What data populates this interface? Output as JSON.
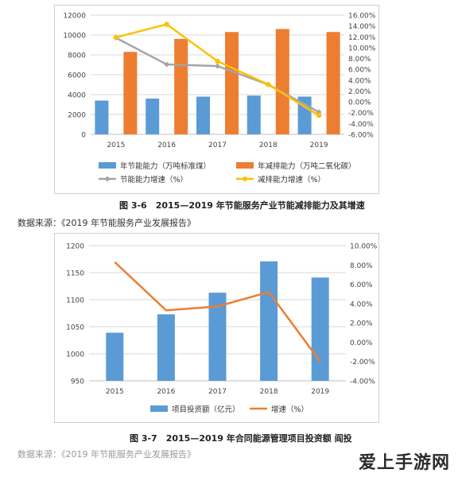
{
  "watermark": "爱上手游网",
  "figures": [
    {
      "caption": "图 3-6　2015—2019 年节能服务产业节能减排能力及其增速",
      "source": "数据来源：《2019 年节能服务产业发展报告》"
    },
    {
      "caption": "图 3-7　2015—2019 年合同能源管理项目投资额 阎投",
      "source": "数据来源：《2019 年节能服务产业发展报告》"
    }
  ],
  "chart_data": [
    {
      "type": "bar",
      "categories": [
        "2015",
        "2016",
        "2017",
        "2018",
        "2019"
      ],
      "ylim": [
        0,
        12000
      ],
      "yticks": [
        "0",
        "2000",
        "4000",
        "6000",
        "8000",
        "10000",
        "12000"
      ],
      "y2lim": [
        -6,
        16
      ],
      "y2ticks": [
        "-6.00%",
        "-4.00%",
        "-2.00%",
        "0.00%",
        "2.00%",
        "4.00%",
        "6.00%",
        "8.00%",
        "10.00%",
        "12.00%",
        "14.00%",
        "16.00%"
      ],
      "legend_position": "bottom",
      "grid": true,
      "series": [
        {
          "name": "年节能能力（万吨标准煤）",
          "kind": "bar",
          "axis": "left",
          "color": "#5b9bd5",
          "values": [
            3400,
            3600,
            3800,
            3900,
            3800
          ]
        },
        {
          "name": "年减排能力（万吨二氧化碳）",
          "kind": "bar",
          "axis": "left",
          "color": "#ed7d31",
          "values": [
            8300,
            9600,
            10300,
            10600,
            10300
          ]
        },
        {
          "name": "节能能力增速（%）",
          "kind": "line",
          "axis": "right",
          "color": "#a5a5a5",
          "marker": "diamond",
          "values": [
            11.8,
            6.9,
            6.6,
            3.2,
            -1.9
          ]
        },
        {
          "name": "减排能力增速（%）",
          "kind": "line",
          "axis": "right",
          "color": "#ffc000",
          "marker": "circle",
          "values": [
            11.9,
            14.3,
            7.5,
            3.2,
            -2.5
          ]
        }
      ]
    },
    {
      "type": "bar",
      "categories": [
        "2015",
        "2016",
        "2017",
        "2018",
        "2019"
      ],
      "ylim": [
        950,
        1200
      ],
      "yticks": [
        "950",
        "1000",
        "1050",
        "1100",
        "1150",
        "1200"
      ],
      "y2lim": [
        -4,
        10
      ],
      "y2ticks": [
        "-4.00%",
        "-2.00%",
        "0.00%",
        "2.00%",
        "4.00%",
        "6.00%",
        "8.00%",
        "10.00%"
      ],
      "legend_position": "bottom",
      "grid": true,
      "series": [
        {
          "name": "项目投资额（亿元）",
          "kind": "bar",
          "axis": "left",
          "color": "#5b9bd5",
          "values": [
            1039,
            1073,
            1113,
            1171,
            1141
          ]
        },
        {
          "name": "增速（%）",
          "kind": "line",
          "axis": "right",
          "color": "#ed7d31",
          "values": [
            8.3,
            3.3,
            3.7,
            5.2,
            -2.0
          ]
        }
      ]
    }
  ]
}
